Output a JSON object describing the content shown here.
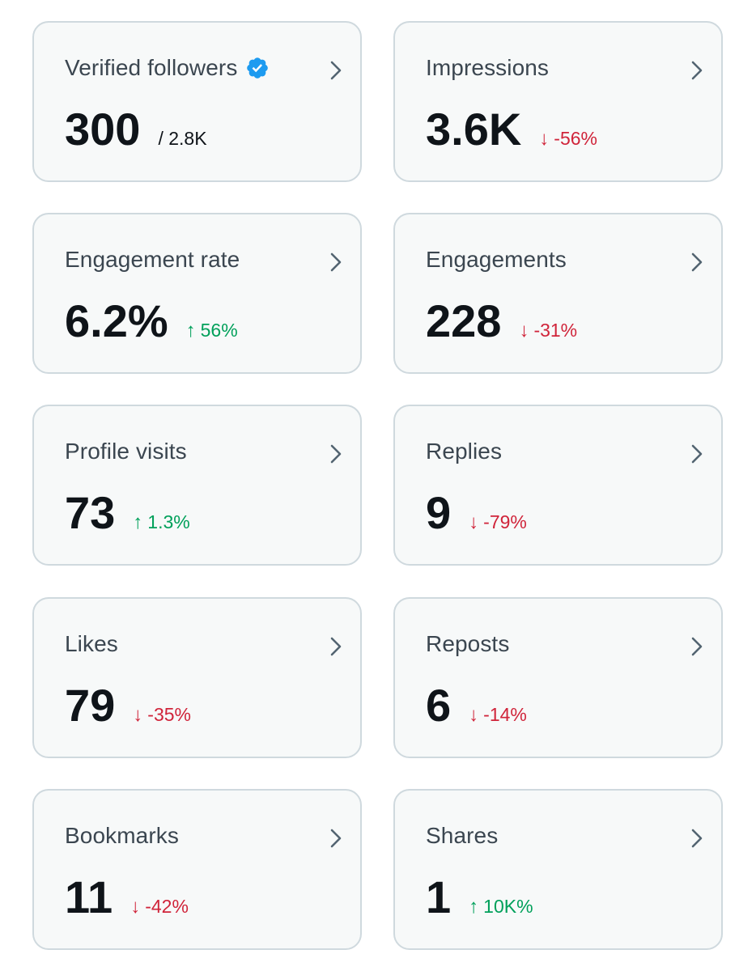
{
  "colors": {
    "card_bg": "#f7f9f9",
    "card_border": "#cfd9de",
    "title": "#3b4650",
    "value": "#0f1419",
    "down": "#d0243a",
    "up": "#00a05a",
    "verified": "#1d9bf0",
    "chevron": "#536471"
  },
  "cards": [
    {
      "title": "Verified followers",
      "value": "300",
      "total": "/ 2.8K",
      "icon": "verified-badge-icon"
    },
    {
      "title": "Impressions",
      "value": "3.6K",
      "change": "-56%",
      "direction": "down",
      "arrow": "↓"
    },
    {
      "title": "Engagement rate",
      "value": "6.2%",
      "change": "56%",
      "direction": "up",
      "arrow": "↑"
    },
    {
      "title": "Engagements",
      "value": "228",
      "change": "-31%",
      "direction": "down",
      "arrow": "↓"
    },
    {
      "title": "Profile visits",
      "value": "73",
      "change": "1.3%",
      "direction": "up",
      "arrow": "↑"
    },
    {
      "title": "Replies",
      "value": "9",
      "change": "-79%",
      "direction": "down",
      "arrow": "↓"
    },
    {
      "title": "Likes",
      "value": "79",
      "change": "-35%",
      "direction": "down",
      "arrow": "↓"
    },
    {
      "title": "Reposts",
      "value": "6",
      "change": "-14%",
      "direction": "down",
      "arrow": "↓"
    },
    {
      "title": "Bookmarks",
      "value": "11",
      "change": "-42%",
      "direction": "down",
      "arrow": "↓"
    },
    {
      "title": "Shares",
      "value": "1",
      "change": "10K%",
      "direction": "up",
      "arrow": "↑"
    }
  ]
}
